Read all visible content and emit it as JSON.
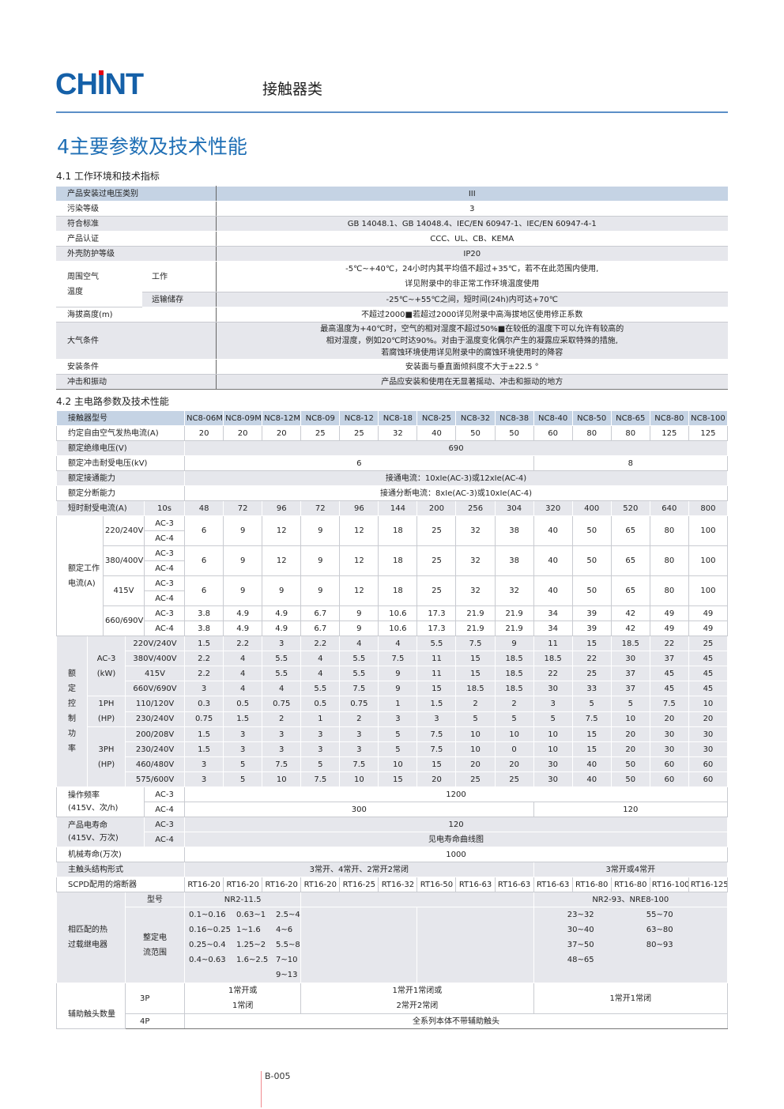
{
  "header": {
    "logo": "CHNT",
    "category": "接触器类",
    "brand_blue": "#1560a8",
    "logo_dot_red": "#e60012"
  },
  "section_title": "4主要参数及技术性能",
  "s41": {
    "title": "4.1 工作环境和技术指标",
    "rows": [
      {
        "label": "产品安装过电压类别",
        "value": "III"
      },
      {
        "label": "污染等级",
        "value": "3"
      },
      {
        "label": "符合标准",
        "value": "GB 14048.1、GB 14048.4、IEC/EN 60947-1、IEC/EN 60947-4-1"
      },
      {
        "label": "产品认证",
        "value": "CCC、UL、CB、KEMA"
      },
      {
        "label": "外壳防护等级",
        "value": "IP20"
      }
    ],
    "temp": {
      "label": "周围空气温度",
      "work_label": "工作",
      "work_line1": "-5℃~+40℃，24小时内其平均值不超过+35℃，若不在此范围内使用,",
      "work_line2": "详见附录中的非正常工作环境温度使用",
      "store_label": "运输储存",
      "store_value": "-25℃~+55℃之间，短时间(24h)内可达+70℃"
    },
    "altitude": {
      "label": "海拔高度(m)",
      "value": "不超过2000■若超过2000详见附录中高海拔地区使用修正系数"
    },
    "atmos": {
      "label": "大气条件",
      "line1": "最高温度为+40℃时，空气的相对湿度不超过50%■在较低的温度下可以允许有较高的",
      "line2": "相对湿度，例如20℃时达90%。对由于温度变化偶尔产生的凝露应采取特殊的措施,",
      "line3": "若腐蚀环境使用详见附录中的腐蚀环境使用时的降容"
    },
    "install": {
      "label": "安装条件",
      "value": "安装面与垂直面倾斜度不大于±22.5 °"
    },
    "shock": {
      "label": "冲击和振动",
      "value": "产品应安装和使用在无显著摇动、冲击和振动的地方"
    }
  },
  "s42": {
    "title": "4.2 主电路参数及技术性能",
    "model_label": "接触器型号",
    "models": [
      "NC8-06M",
      "NC8-09M",
      "NC8-12M",
      "NC8-09",
      "NC8-12",
      "NC8-18",
      "NC8-25",
      "NC8-32",
      "NC8-38",
      "NC8-40",
      "NC8-50",
      "NC8-65",
      "NC8-80",
      "NC8-100"
    ],
    "thermal": {
      "label": "约定自由空气发热电流(A)",
      "values": [
        "20",
        "20",
        "20",
        "25",
        "25",
        "32",
        "40",
        "50",
        "50",
        "60",
        "80",
        "80",
        "125",
        "125"
      ]
    },
    "insulation": {
      "label": "额定绝缘电压(V)",
      "value": "690"
    },
    "impulse": {
      "label": "额定冲击耐受电压(kV)",
      "value_a": "6",
      "value_b": "8"
    },
    "making": {
      "label": "额定接通能力",
      "value": "接通电流：10xIe(AC-3)或12xIe(AC-4)"
    },
    "breaking": {
      "label": "额定分断能力",
      "value": "接通分断电流：8xIe(AC-3)或10xIe(AC-4)"
    },
    "short": {
      "label": "短时耐受电流(A)",
      "time": "10s",
      "values": [
        "48",
        "72",
        "96",
        "72",
        "96",
        "144",
        "200",
        "256",
        "304",
        "320",
        "400",
        "520",
        "640",
        "800"
      ]
    },
    "current": {
      "label": "额定工作电流(A)",
      "ac3": "AC-3",
      "ac4": "AC-4",
      "v220": {
        "label": "220/240V",
        "values": [
          "6",
          "9",
          "12",
          "9",
          "12",
          "18",
          "25",
          "32",
          "38",
          "40",
          "50",
          "65",
          "80",
          "100"
        ]
      },
      "v380": {
        "label": "380/400V",
        "values": [
          "6",
          "9",
          "12",
          "9",
          "12",
          "18",
          "25",
          "32",
          "38",
          "40",
          "50",
          "65",
          "80",
          "100"
        ]
      },
      "v415": {
        "label": "415V",
        "values": [
          "6",
          "9",
          "9",
          "9",
          "12",
          "18",
          "25",
          "32",
          "32",
          "40",
          "50",
          "65",
          "80",
          "100"
        ]
      },
      "v660": {
        "label": "660/690V",
        "ac3_values": [
          "3.8",
          "4.9",
          "4.9",
          "6.7",
          "9",
          "10.6",
          "17.3",
          "21.9",
          "21.9",
          "34",
          "39",
          "42",
          "49",
          "49"
        ],
        "ac4_values": [
          "3.8",
          "4.9",
          "4.9",
          "6.7",
          "9",
          "10.6",
          "17.3",
          "21.9",
          "21.9",
          "34",
          "39",
          "42",
          "49",
          "49"
        ]
      }
    },
    "power": {
      "label": "额定控制功率",
      "ac3_label": "AC-3",
      "ac3_unit": "(kW)",
      "ph1_label": "1PH",
      "ph3_label": "3PH",
      "hp_unit": "(HP)",
      "ac3": [
        {
          "v": "220V/240V",
          "values": [
            "1.5",
            "2.2",
            "3",
            "2.2",
            "4",
            "4",
            "5.5",
            "7.5",
            "9",
            "11",
            "15",
            "18.5",
            "22",
            "25"
          ]
        },
        {
          "v": "380V/400V",
          "values": [
            "2.2",
            "4",
            "5.5",
            "4",
            "5.5",
            "7.5",
            "11",
            "15",
            "18.5",
            "18.5",
            "22",
            "30",
            "37",
            "45"
          ]
        },
        {
          "v": "415V",
          "values": [
            "2.2",
            "4",
            "5.5",
            "4",
            "5.5",
            "9",
            "11",
            "15",
            "18.5",
            "22",
            "25",
            "37",
            "45",
            "45"
          ]
        },
        {
          "v": "660V/690V",
          "values": [
            "3",
            "4",
            "4",
            "5.5",
            "7.5",
            "9",
            "15",
            "18.5",
            "18.5",
            "30",
            "33",
            "37",
            "45",
            "45"
          ]
        }
      ],
      "ph1": [
        {
          "v": "110/120V",
          "values": [
            "0.3",
            "0.5",
            "0.75",
            "0.5",
            "0.75",
            "1",
            "1.5",
            "2",
            "2",
            "3",
            "5",
            "5",
            "7.5",
            "10"
          ]
        },
        {
          "v": "230/240V",
          "values": [
            "0.75",
            "1.5",
            "2",
            "1",
            "2",
            "3",
            "3",
            "5",
            "5",
            "5",
            "7.5",
            "10",
            "20",
            "20"
          ]
        }
      ],
      "ph3": [
        {
          "v": "200/208V",
          "values": [
            "1.5",
            "3",
            "3",
            "3",
            "3",
            "5",
            "7.5",
            "10",
            "10",
            "10",
            "15",
            "20",
            "30",
            "30"
          ]
        },
        {
          "v": "230/240V",
          "values": [
            "1.5",
            "3",
            "3",
            "3",
            "3",
            "5",
            "7.5",
            "10",
            "0",
            "10",
            "15",
            "20",
            "30",
            "30"
          ]
        },
        {
          "v": "460/480V",
          "values": [
            "3",
            "5",
            "7.5",
            "5",
            "7.5",
            "10",
            "15",
            "20",
            "20",
            "30",
            "40",
            "50",
            "60",
            "60"
          ]
        },
        {
          "v": "575/600V",
          "values": [
            "3",
            "5",
            "10",
            "7.5",
            "10",
            "15",
            "20",
            "25",
            "25",
            "30",
            "40",
            "50",
            "60",
            "60"
          ]
        }
      ]
    },
    "freq": {
      "label1": "操作频率",
      "label2": "(415V、次/h)",
      "ac3": "AC-3",
      "ac4": "AC-4",
      "ac3_value": "1200",
      "ac4_value_a": "300",
      "ac4_value_b": "120"
    },
    "elife": {
      "label1": "产品电寿命",
      "label2": "(415V、万次)",
      "ac3": "AC-3",
      "ac4": "AC-4",
      "ac3_value": "120",
      "ac4_value": "见电寿命曲线图"
    },
    "mlife": {
      "label": "机械寿命(万次)",
      "value": "1000"
    },
    "contacts": {
      "label": "主触头结构形式",
      "value_a": "3常开、4常开、2常开2常闭",
      "value_b": "3常开或4常开"
    },
    "scpd": {
      "label": "SCPD配用的熔断器",
      "values": [
        "RT16-20",
        "RT16-20",
        "RT16-20",
        "RT16-20",
        "RT16-25",
        "RT16-32",
        "RT16-50",
        "RT16-63",
        "RT16-63",
        "RT16-63",
        "RT16-80",
        "RT16-80",
        "RT16-100",
        "RT16-125"
      ]
    },
    "relay": {
      "label1": "相匹配的热",
      "label2": "过载继电器",
      "type_label": "型号",
      "type_a": "NR2-11.5",
      "type_b": "NR2-93、NRE8-100",
      "range_label1": "整定电",
      "range_label2": "流范围",
      "range_a": [
        "0.1~0.16",
        "0.63~1",
        "2.5~4",
        "0.16~0.25",
        "1~1.6",
        "4~6",
        "0.25~0.4",
        "1.25~2",
        "5.5~8",
        "0.4~0.63",
        "1.6~2.5",
        "7~10",
        "",
        "",
        "9~13"
      ],
      "range_b": [
        "23~32",
        "55~70",
        "30~40",
        "63~80",
        "37~50",
        "80~93",
        "48~65",
        ""
      ]
    },
    "aux": {
      "label": "辅助触头数量",
      "p3": "3P",
      "p4": "4P",
      "p3_a1": "1常开或",
      "p3_a2": "1常闭",
      "p3_b1": "1常开1常闭或",
      "p3_b2": "2常开2常闭",
      "p3_c": "1常开1常闭",
      "p4_value": "全系列本体不带辅助触头"
    }
  },
  "footer": {
    "page": "B-005"
  }
}
